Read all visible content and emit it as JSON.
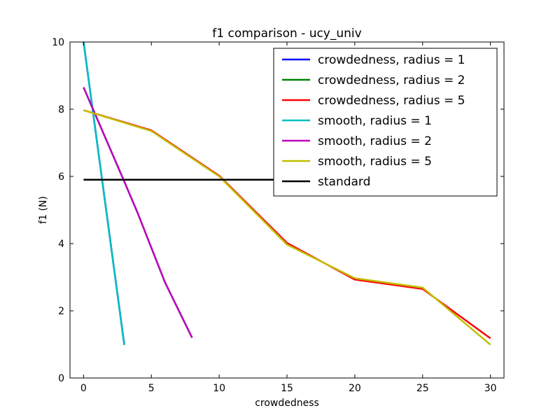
{
  "chart_data": {
    "type": "line",
    "title": "f1 comparison - ucy_univ",
    "xlabel": "crowdedness",
    "ylabel": "f1 (N)",
    "xlim": [
      -1,
      31
    ],
    "ylim": [
      0,
      10
    ],
    "xticks": [
      0,
      5,
      10,
      15,
      20,
      25,
      30
    ],
    "yticks": [
      0,
      2,
      4,
      6,
      8,
      10
    ],
    "grid": false,
    "legend_position": "top-right",
    "series": [
      {
        "name": "crowdedness, radius = 1",
        "color": "#0000ff",
        "x": [
          0,
          3
        ],
        "y": [
          10.0,
          1.0
        ]
      },
      {
        "name": "crowdedness, radius = 2",
        "color": "#008000",
        "x": [
          0,
          3,
          4,
          6,
          8
        ],
        "y": [
          8.65,
          5.85,
          4.9,
          2.85,
          1.2
        ]
      },
      {
        "name": "crowdedness, radius = 5",
        "color": "#ff0000",
        "x": [
          0,
          5,
          10,
          15,
          20,
          25,
          30
        ],
        "y": [
          7.97,
          7.37,
          6.02,
          4.02,
          2.93,
          2.65,
          1.18
        ]
      },
      {
        "name": "smooth, radius = 1",
        "color": "#00bfbf",
        "x": [
          0,
          3
        ],
        "y": [
          10.0,
          0.98
        ]
      },
      {
        "name": "smooth, radius = 2",
        "color": "#bf00bf",
        "x": [
          0,
          3,
          4,
          6,
          8
        ],
        "y": [
          8.65,
          5.85,
          4.9,
          2.85,
          1.2
        ]
      },
      {
        "name": "smooth, radius = 5",
        "color": "#bfbf00",
        "x": [
          0,
          5,
          10,
          15,
          20,
          25,
          30
        ],
        "y": [
          7.97,
          7.35,
          6.0,
          3.97,
          2.97,
          2.69,
          0.99
        ]
      },
      {
        "name": "standard",
        "color": "#000000",
        "x": [
          0,
          30
        ],
        "y": [
          5.9,
          5.9
        ]
      }
    ]
  }
}
